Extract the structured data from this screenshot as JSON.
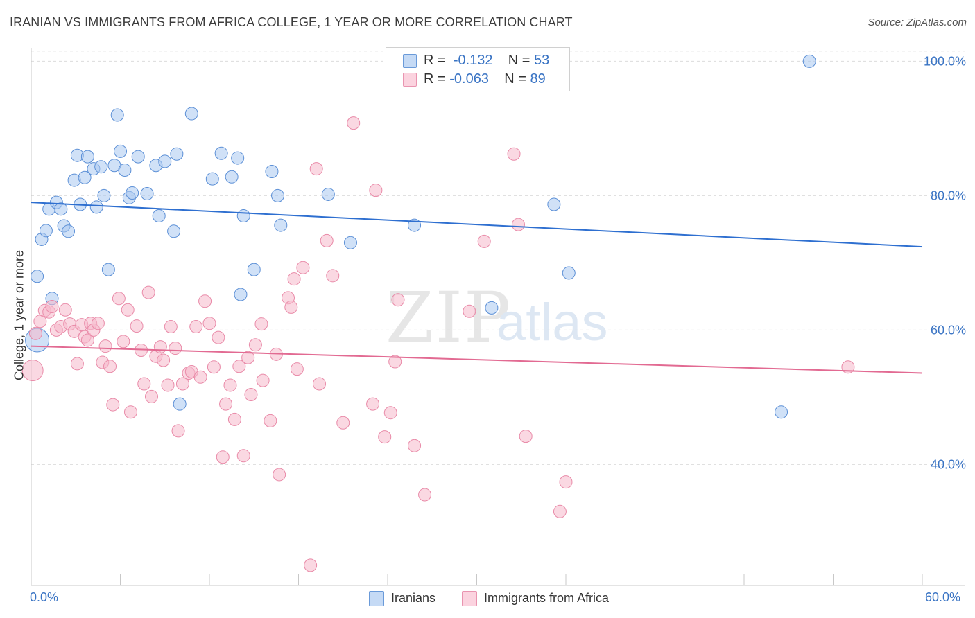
{
  "title": "IRANIAN VS IMMIGRANTS FROM AFRICA COLLEGE, 1 YEAR OR MORE CORRELATION CHART",
  "source": "Source: ZipAtlas.com",
  "watermark": {
    "zip": "ZIP",
    "atlas": "atlas"
  },
  "stats": [
    {
      "r_label": "R =",
      "r_value": "-0.132",
      "n_label": "N =",
      "n_value": "53",
      "color": "#a9c8f0"
    },
    {
      "r_label": "R =",
      "r_value": "-0.063",
      "n_label": "N =",
      "n_value": "89",
      "color": "#f5b8cb"
    }
  ],
  "legend": [
    {
      "label": "Iranians",
      "color": "#a9c8f0"
    },
    {
      "label": "Immigrants from Africa",
      "color": "#f5b8cb"
    }
  ],
  "chart_data": {
    "type": "scatter",
    "title": "IRANIAN VS IMMIGRANTS FROM AFRICA COLLEGE, 1 YEAR OR MORE CORRELATION CHART",
    "xlabel": "",
    "ylabel": "College, 1 year or more",
    "xlim": [
      0,
      60
    ],
    "ylim": [
      22,
      102
    ],
    "x_tick_labels": [
      "0.0%",
      "60.0%"
    ],
    "y_ticks": [
      40,
      60,
      80,
      100
    ],
    "y_tick_labels": [
      "40.0%",
      "60.0%",
      "80.0%",
      "100.0%"
    ],
    "grid": true,
    "series": [
      {
        "name": "Iranians",
        "color": "#a9c8f0",
        "stroke": "#5b8fd6",
        "trend": {
          "x": [
            0,
            60
          ],
          "y": [
            79.0,
            72.4
          ],
          "color": "#2e6fd0"
        },
        "points": [
          [
            0.4,
            58.5
          ],
          [
            0.4,
            68.0
          ],
          [
            0.7,
            73.5
          ],
          [
            1.0,
            74.8
          ],
          [
            1.2,
            78.0
          ],
          [
            1.4,
            64.7
          ],
          [
            1.7,
            79.0
          ],
          [
            2.0,
            78.0
          ],
          [
            2.2,
            75.5
          ],
          [
            2.5,
            74.7
          ],
          [
            2.9,
            82.3
          ],
          [
            3.1,
            86.0
          ],
          [
            3.3,
            78.7
          ],
          [
            3.6,
            82.7
          ],
          [
            3.8,
            85.8
          ],
          [
            4.2,
            84.0
          ],
          [
            4.4,
            78.3
          ],
          [
            4.7,
            84.3
          ],
          [
            4.9,
            80.0
          ],
          [
            5.2,
            69.0
          ],
          [
            5.6,
            84.5
          ],
          [
            5.8,
            92.0
          ],
          [
            6.0,
            86.6
          ],
          [
            6.3,
            83.8
          ],
          [
            6.6,
            79.7
          ],
          [
            6.8,
            80.4
          ],
          [
            7.2,
            85.8
          ],
          [
            7.8,
            80.3
          ],
          [
            8.4,
            84.5
          ],
          [
            8.6,
            77.0
          ],
          [
            9.0,
            85.1
          ],
          [
            9.6,
            74.7
          ],
          [
            9.8,
            86.2
          ],
          [
            10.0,
            49.0
          ],
          [
            10.8,
            92.2
          ],
          [
            12.2,
            82.5
          ],
          [
            12.8,
            86.3
          ],
          [
            13.5,
            82.8
          ],
          [
            13.9,
            85.6
          ],
          [
            14.1,
            65.3
          ],
          [
            14.3,
            77.0
          ],
          [
            15.0,
            69.0
          ],
          [
            16.2,
            83.6
          ],
          [
            16.6,
            80.0
          ],
          [
            16.8,
            75.6
          ],
          [
            20.0,
            80.2
          ],
          [
            21.5,
            73.0
          ],
          [
            25.8,
            75.6
          ],
          [
            31.0,
            63.3
          ],
          [
            35.2,
            78.7
          ],
          [
            36.2,
            68.5
          ],
          [
            50.5,
            47.8
          ],
          [
            52.4,
            100.0
          ]
        ]
      },
      {
        "name": "Immigrants from Africa",
        "color": "#f5b8cb",
        "stroke": "#e98aa8",
        "trend": {
          "x": [
            0,
            60
          ],
          "y": [
            57.6,
            53.6
          ],
          "color": "#e26a92"
        },
        "points": [
          [
            0.1,
            54.0
          ],
          [
            0.3,
            59.5
          ],
          [
            0.6,
            61.3
          ],
          [
            0.9,
            62.9
          ],
          [
            1.2,
            62.7
          ],
          [
            1.4,
            63.5
          ],
          [
            1.7,
            60.0
          ],
          [
            2.0,
            60.5
          ],
          [
            2.3,
            63.0
          ],
          [
            2.6,
            60.9
          ],
          [
            2.9,
            59.8
          ],
          [
            3.1,
            55.0
          ],
          [
            3.4,
            60.8
          ],
          [
            3.6,
            59.0
          ],
          [
            3.8,
            58.5
          ],
          [
            4.0,
            61.0
          ],
          [
            4.2,
            60.0
          ],
          [
            4.5,
            61.0
          ],
          [
            4.8,
            55.2
          ],
          [
            5.0,
            57.6
          ],
          [
            5.3,
            54.6
          ],
          [
            5.5,
            48.9
          ],
          [
            5.9,
            64.7
          ],
          [
            6.2,
            58.3
          ],
          [
            6.5,
            63.0
          ],
          [
            6.7,
            47.8
          ],
          [
            7.1,
            60.6
          ],
          [
            7.4,
            57.0
          ],
          [
            7.6,
            52.0
          ],
          [
            7.9,
            65.6
          ],
          [
            8.1,
            50.1
          ],
          [
            8.4,
            56.1
          ],
          [
            8.7,
            57.5
          ],
          [
            8.9,
            55.5
          ],
          [
            9.2,
            51.8
          ],
          [
            9.4,
            60.5
          ],
          [
            9.7,
            57.3
          ],
          [
            9.9,
            45.0
          ],
          [
            10.2,
            52.0
          ],
          [
            10.6,
            53.6
          ],
          [
            10.8,
            53.8
          ],
          [
            11.1,
            60.5
          ],
          [
            11.4,
            53.0
          ],
          [
            11.7,
            64.3
          ],
          [
            12.0,
            61.0
          ],
          [
            12.3,
            54.5
          ],
          [
            12.6,
            58.9
          ],
          [
            12.9,
            41.1
          ],
          [
            13.1,
            49.0
          ],
          [
            13.4,
            51.8
          ],
          [
            13.7,
            46.7
          ],
          [
            14.0,
            54.6
          ],
          [
            14.3,
            41.3
          ],
          [
            14.6,
            55.9
          ],
          [
            14.8,
            50.4
          ],
          [
            15.1,
            57.8
          ],
          [
            15.5,
            60.9
          ],
          [
            15.6,
            52.5
          ],
          [
            16.1,
            46.5
          ],
          [
            16.5,
            56.4
          ],
          [
            16.7,
            38.5
          ],
          [
            17.3,
            64.8
          ],
          [
            17.5,
            63.4
          ],
          [
            17.7,
            67.6
          ],
          [
            17.9,
            54.2
          ],
          [
            18.3,
            69.3
          ],
          [
            18.8,
            25.0
          ],
          [
            19.2,
            84.0
          ],
          [
            19.4,
            52.0
          ],
          [
            19.9,
            73.3
          ],
          [
            20.3,
            68.1
          ],
          [
            21.0,
            46.2
          ],
          [
            21.7,
            90.8
          ],
          [
            23.0,
            49.0
          ],
          [
            23.2,
            80.8
          ],
          [
            23.8,
            44.1
          ],
          [
            24.2,
            47.7
          ],
          [
            24.5,
            55.3
          ],
          [
            24.7,
            64.5
          ],
          [
            25.8,
            42.8
          ],
          [
            26.5,
            35.5
          ],
          [
            29.5,
            62.8
          ],
          [
            30.5,
            73.2
          ],
          [
            32.5,
            86.2
          ],
          [
            32.8,
            75.7
          ],
          [
            33.3,
            44.2
          ],
          [
            36.0,
            37.4
          ],
          [
            35.6,
            33.0
          ],
          [
            55.0,
            54.5
          ]
        ]
      }
    ]
  }
}
